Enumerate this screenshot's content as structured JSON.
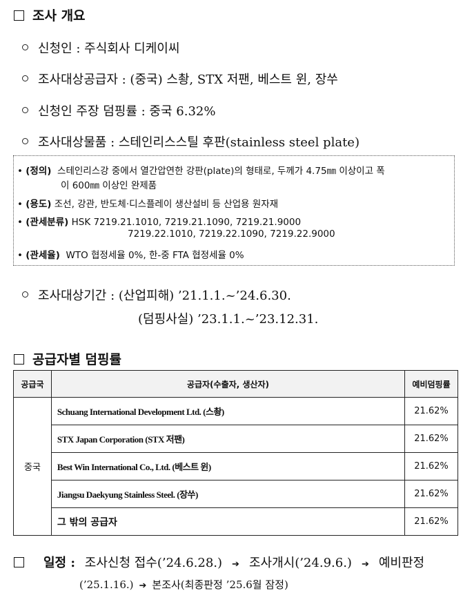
{
  "section1": {
    "title": "조사 개요"
  },
  "overview": {
    "applicant": "신청인 : 주식회사 디케이씨",
    "suppliers": "조사대상공급자 : (중국) 스촹, STX 저팬, 베스트 윈, 장쑤",
    "margin": "신청인 주장 덤핑률 : 중국 6.32%",
    "product": "조사대상물품 : 스테인리스스틸 후판(stainless steel plate)"
  },
  "note": {
    "def_label": "(정의)",
    "def_text1": "스테인리스강 중에서 열간압연한 강판(plate)의 형태로, 두께가 4.75㎜ 이상이고 폭",
    "def_text2": "이 600㎜ 이상인 완제품",
    "use_label": "(용도)",
    "use_text": "조선, 강관, 반도체·디스플레이 생산설비 등 산업용 원자재",
    "hs_label": "(관세분류)",
    "hs_text1": "HSK 7219.21.1010, 7219.21.1090, 7219.21.9000",
    "hs_text2": "7219.22.1010, 7219.22.1090, 7219.22.9000",
    "tariff_label": "(관세율)",
    "tariff_text": "WTO 협정세율 0%, 한-중 FTA 협정세율 0%"
  },
  "period": {
    "line1": "조사대상기간 : (산업피해) ’21.1.1.~’24.6.30.",
    "line2": "(덤핑사실) ’23.1.1.~’23.12.31."
  },
  "section2": {
    "title": "공급자별 덤핑률"
  },
  "table": {
    "headers": [
      "공급국",
      "공급자(수출자, 생산자)",
      "예비덤핑률"
    ],
    "country": "중국",
    "rows": [
      {
        "name": "Schuang International Development Ltd. (스촹)",
        "rate": "21.62%"
      },
      {
        "name": "STX Japan Corporation (STX 저팬)",
        "rate": "21.62%"
      },
      {
        "name": "Best Win International Co., Ltd. (베스트 윈)",
        "rate": "21.62%"
      },
      {
        "name": "Jiangsu Daekyung Stainless Steel. (장쑤)",
        "rate": "21.62%"
      },
      {
        "name": "그 밖의 공급자",
        "rate": "21.62%"
      }
    ]
  },
  "schedule": {
    "label": "일정 :",
    "step1": "조사신청 접수(’24.6.28.)",
    "step2": "조사개시(’24.9.6.)",
    "step3": "예비판정",
    "step3_date": "(’25.1.16.)",
    "step4": "본조사(최종판정 ’25.6월 잠정)"
  }
}
